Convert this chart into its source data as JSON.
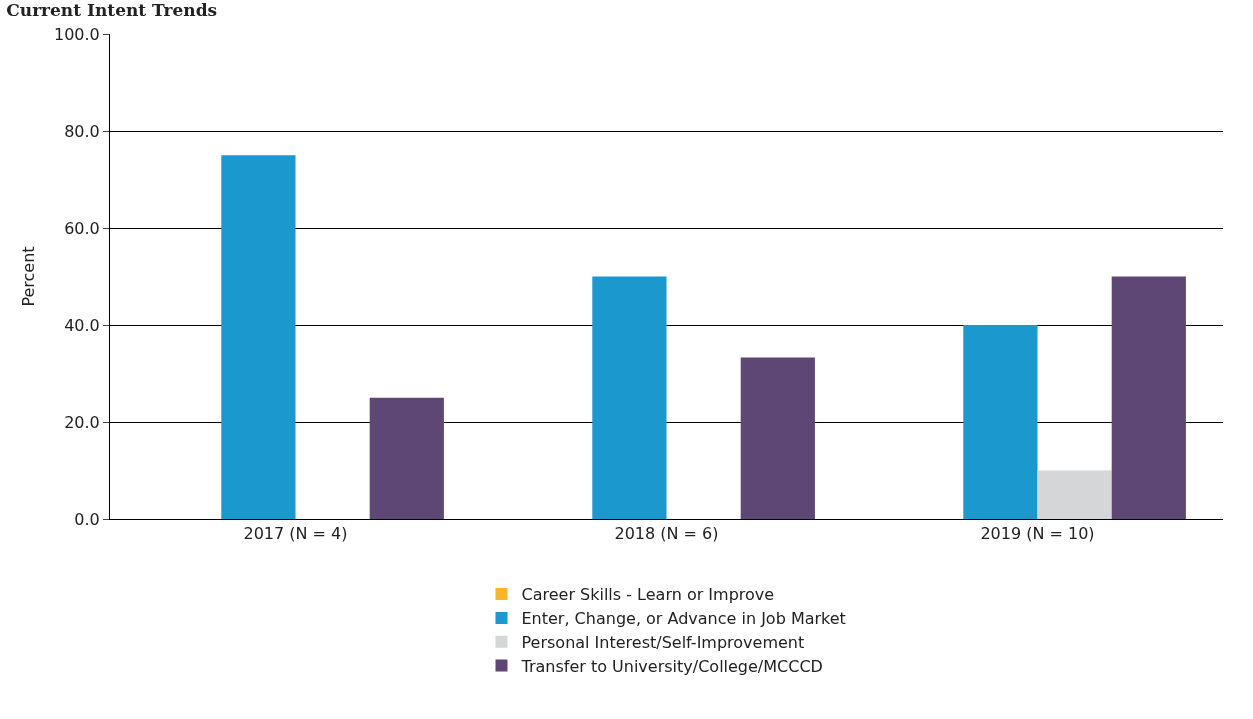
{
  "chart_data": {
    "type": "bar",
    "title": "Current Intent Trends",
    "ylabel": "Percent",
    "categories": [
      "2017 (N = 4)",
      "2018 (N = 6)",
      "2019 (N = 10)"
    ],
    "series": [
      {
        "name": "Career Skills - Learn or Improve",
        "color": "#f9b52a",
        "values": [
          0,
          0,
          0
        ]
      },
      {
        "name": "Enter, Change, or Advance in Job Market",
        "color": "#1b98cd",
        "values": [
          75,
          50,
          40
        ]
      },
      {
        "name": "Personal Interest/Self-Improvement",
        "color": "#d4d6d8",
        "values": [
          0,
          0,
          10
        ]
      },
      {
        "name": "Transfer to University/College/MCCCD",
        "color": "#5e4675",
        "values": [
          25,
          33.3,
          50
        ]
      }
    ],
    "ylim": [
      0,
      100
    ],
    "yticks": [
      {
        "value": 0,
        "label": "0.0"
      },
      {
        "value": 20,
        "label": "20.0"
      },
      {
        "value": 40,
        "label": "40.0"
      },
      {
        "value": 60,
        "label": "60.0"
      },
      {
        "value": 80,
        "label": "80.0"
      },
      {
        "value": 100,
        "label": "100.0"
      }
    ],
    "grid": "y",
    "legend": "bottom"
  }
}
